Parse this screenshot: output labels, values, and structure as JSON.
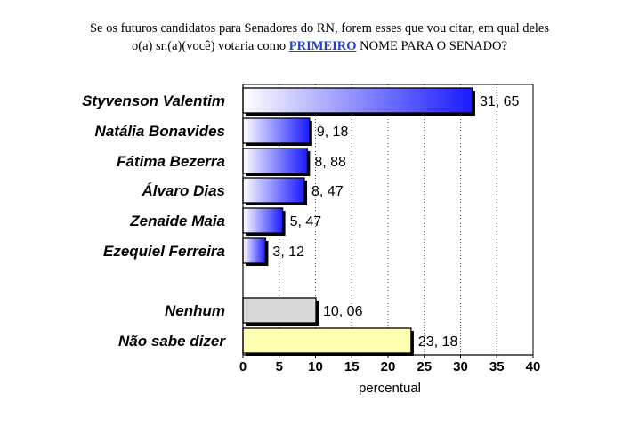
{
  "question": {
    "line1": "Se os futuros candidatos para Senadores do RN, forem esses que vou citar, em qual deles",
    "line2_before": "o(a) sr.(a)(você) votaria como ",
    "line2_keyword": "PRIMEIRO",
    "line2_after": " NOME PARA O SENADO?"
  },
  "chart_data": {
    "type": "bar",
    "orientation": "horizontal",
    "categories": [
      "Styvenson Valentim",
      "Natália Bonavides",
      "Fátima Bezerra",
      "Álvaro Dias",
      "Zenaide Maia",
      "Ezequiel Ferreira",
      "Nenhum",
      "Não sabe dizer"
    ],
    "values": [
      31.65,
      9.18,
      8.88,
      8.47,
      5.47,
      3.12,
      10.06,
      23.18
    ],
    "value_labels": [
      "31, 65",
      "9, 18",
      "8, 88",
      "8, 47",
      "5, 47",
      "3, 12",
      "10, 06",
      "23, 18"
    ],
    "bar_styles": [
      "blue-gradient",
      "blue-gradient",
      "blue-gradient",
      "blue-gradient",
      "blue-gradient",
      "blue-gradient",
      "gray",
      "yellow"
    ],
    "xlabel": "percentual",
    "xlim": [
      0,
      40
    ],
    "xticks": [
      0,
      5,
      10,
      15,
      20,
      25,
      30,
      35,
      40
    ],
    "grid": "vertical dotted",
    "colors": {
      "blue_start": "#ffffff",
      "blue_end": "#1a1aff",
      "gray": "#d9d9d9",
      "yellow": "#ffffb0",
      "outline": "#000000"
    }
  }
}
